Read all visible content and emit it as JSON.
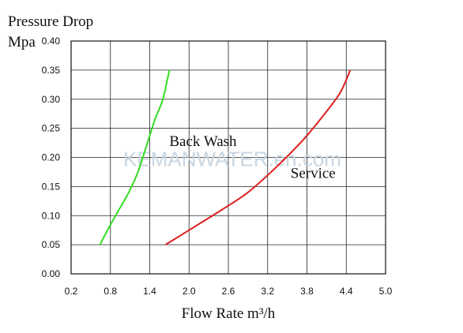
{
  "chart_data": {
    "type": "line",
    "ylabel_line1": "Pressure Drop",
    "ylabel_line2": "Mpa",
    "xlabel": "Flow Rate m³/h",
    "watermark": "KEMANWATER.en.com",
    "xlim": [
      0.2,
      5.0
    ],
    "ylim": [
      0.0,
      0.4
    ],
    "x_ticks": [
      "0.2",
      "0.8",
      "1.4",
      "2.0",
      "2.6",
      "3.2",
      "3.8",
      "4.4",
      "5.0"
    ],
    "x_tick_values": [
      0.2,
      0.8,
      1.4,
      2.0,
      2.6,
      3.2,
      3.8,
      4.4,
      5.0
    ],
    "y_ticks": [
      "0.00",
      "0.05",
      "0.10",
      "0.15",
      "0.20",
      "0.25",
      "0.30",
      "0.35",
      "0.40"
    ],
    "y_tick_values": [
      0.0,
      0.05,
      0.1,
      0.15,
      0.2,
      0.25,
      0.3,
      0.35,
      0.4
    ],
    "grid": true,
    "series": [
      {
        "name": "Back Wash",
        "color": "#33dd22",
        "label_at": [
          1.7,
          0.22
        ],
        "x": [
          0.64,
          0.78,
          0.93,
          1.08,
          1.22,
          1.35,
          1.48,
          1.6,
          1.7
        ],
        "y": [
          0.05,
          0.08,
          0.11,
          0.14,
          0.175,
          0.22,
          0.265,
          0.3,
          0.35
        ]
      },
      {
        "name": "Service",
        "color": "#dd1f1f",
        "label_at": [
          3.55,
          0.165
        ],
        "x": [
          1.64,
          2.0,
          2.5,
          2.9,
          3.3,
          3.7,
          4.0,
          4.3,
          4.46
        ],
        "y": [
          0.05,
          0.075,
          0.11,
          0.14,
          0.18,
          0.225,
          0.265,
          0.31,
          0.35
        ]
      }
    ]
  }
}
